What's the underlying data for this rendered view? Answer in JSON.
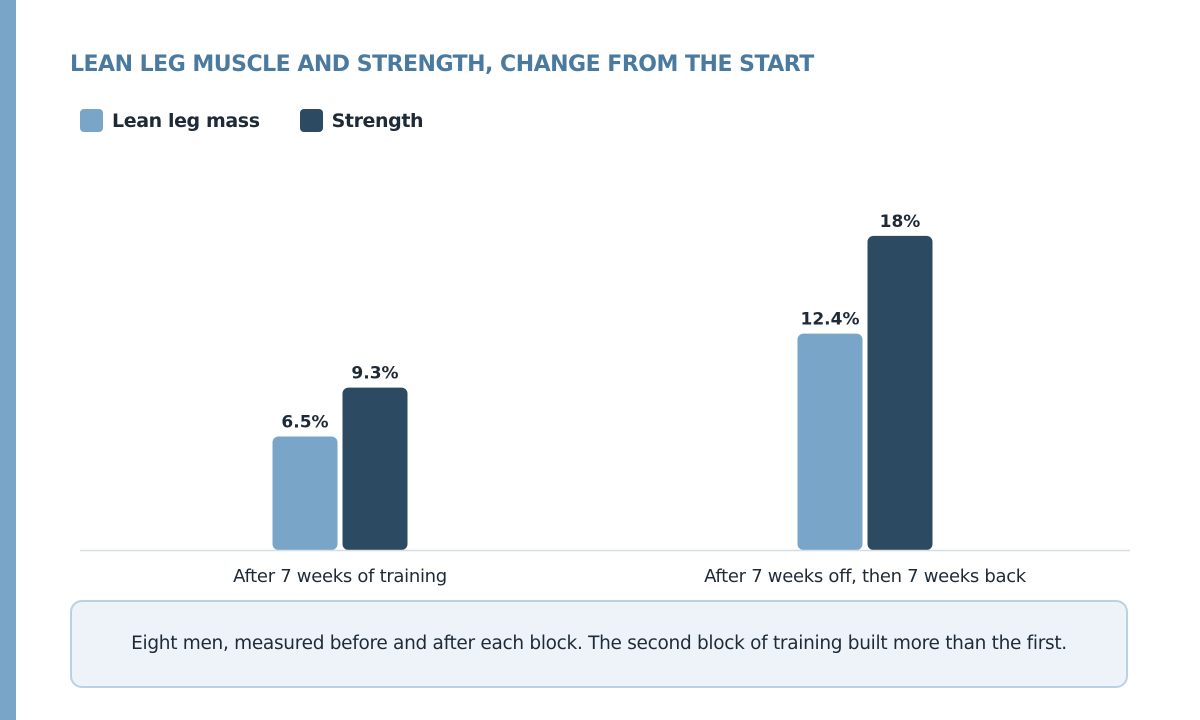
{
  "colors": {
    "accent": "#78a5c8",
    "title": "#4a7aa0",
    "lean": "#78a5c8",
    "strength": "#2d4a63"
  },
  "legend": [
    {
      "label": "Lean leg mass",
      "color": "#78a5c8"
    },
    {
      "label": "Strength",
      "color": "#2d4a63"
    }
  ],
  "chart_data": {
    "type": "bar",
    "title": "LEAN LEG MUSCLE AND STRENGTH, CHANGE FROM THE START",
    "categories": [
      "After 7 weeks of training",
      "After 7 weeks off, then 7 weeks back"
    ],
    "series": [
      {
        "name": "Lean leg mass",
        "values": [
          6.5,
          12.4
        ],
        "labels": [
          "6.5%",
          "12.4%"
        ],
        "color": "#78a5c8"
      },
      {
        "name": "Strength",
        "values": [
          9.3,
          18
        ],
        "labels": [
          "9.3%",
          "18%"
        ],
        "color": "#2d4a63"
      }
    ],
    "ylim": [
      0,
      22
    ],
    "grid": false,
    "legend": "top-left"
  },
  "note": "Eight men, measured before and after each block. The second block of training built more than the first."
}
